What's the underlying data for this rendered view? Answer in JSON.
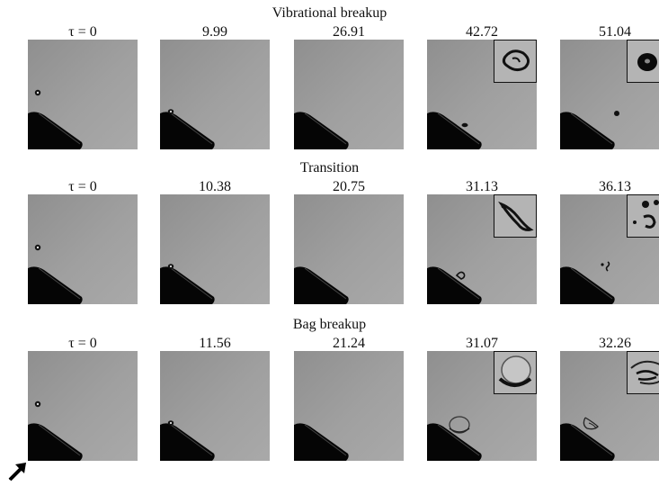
{
  "figure": {
    "rows": [
      {
        "title": "Vibrational breakup",
        "frames": [
          {
            "label": "τ = 0",
            "drop": "sphere",
            "inset": false
          },
          {
            "label": "9.99",
            "drop": "sphere-small",
            "inset": false
          },
          {
            "label": "26.91",
            "drop": "none",
            "inset": false
          },
          {
            "label": "42.72",
            "drop": "deformed",
            "inset": true
          },
          {
            "label": "51.04",
            "drop": "blob",
            "inset": true
          }
        ]
      },
      {
        "title": "Transition",
        "frames": [
          {
            "label": "τ = 0",
            "drop": "sphere",
            "inset": false
          },
          {
            "label": "10.38",
            "drop": "sphere-small",
            "inset": false
          },
          {
            "label": "20.75",
            "drop": "none",
            "inset": false
          },
          {
            "label": "31.13",
            "drop": "stretched",
            "inset": true
          },
          {
            "label": "36.13",
            "drop": "fragments",
            "inset": true
          }
        ]
      },
      {
        "title": "Bag breakup",
        "frames": [
          {
            "label": "τ = 0",
            "drop": "sphere",
            "inset": false
          },
          {
            "label": "11.56",
            "drop": "sphere-small",
            "inset": false
          },
          {
            "label": "21.24",
            "drop": "none",
            "inset": false
          },
          {
            "label": "31.07",
            "drop": "bag",
            "inset": true
          },
          {
            "label": "32.26",
            "drop": "burst",
            "inset": true
          }
        ]
      }
    ],
    "icons": {
      "flow_direction": "arrow-up-right-icon"
    }
  }
}
